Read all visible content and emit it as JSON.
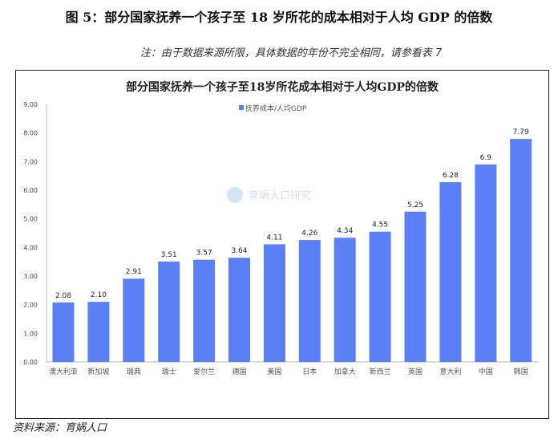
{
  "figure_title": "图 5：部分国家抚养一个孩子至 18 岁所花的成本相对于人均 GDP 的倍数",
  "note": "注：由于数据来源所限，具体数据的年份不完全相同，请参看表 7",
  "source": "资料来源：育娲人口",
  "watermark": "育娲人口研究",
  "chart_data": {
    "type": "bar",
    "title": "部分国家抚养一个孩子至18岁所花成本相对于人均GDP的倍数",
    "categories": [
      "澳大利亚",
      "新加坡",
      "瑞典",
      "瑞士",
      "爱尔兰",
      "德国",
      "美国",
      "日本",
      "加拿大",
      "新西兰",
      "英国",
      "意大利",
      "中国",
      "韩国"
    ],
    "series": [
      {
        "name": "抚养成本/人均GDP",
        "values": [
          2.08,
          2.1,
          2.91,
          3.51,
          3.57,
          3.64,
          4.11,
          4.26,
          4.34,
          4.55,
          5.25,
          6.28,
          6.9,
          7.79
        ]
      }
    ],
    "data_labels": [
      "2.08",
      "2.10",
      "2.91",
      "3.51",
      "3.57",
      "3.64",
      "4.11",
      "4.26",
      "4.34",
      "4.55",
      "5.25",
      "6.28",
      "6.9",
      "7.79"
    ],
    "yticks": [
      "0.00",
      "1.00",
      "2.00",
      "3.00",
      "4.00",
      "5.00",
      "6.00",
      "7.00",
      "8.00",
      "9.00"
    ],
    "ylim": [
      0,
      9
    ],
    "grid": false,
    "legend": "top-center",
    "bar_color": "#5b7ff5"
  }
}
